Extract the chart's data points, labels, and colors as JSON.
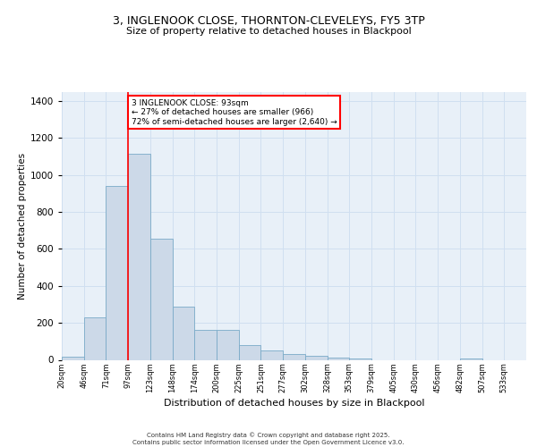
{
  "title1": "3, INGLENOOK CLOSE, THORNTON-CLEVELEYS, FY5 3TP",
  "title2": "Size of property relative to detached houses in Blackpool",
  "xlabel": "Distribution of detached houses by size in Blackpool",
  "ylabel": "Number of detached properties",
  "bar_color": "#ccd9e8",
  "bar_edge_color": "#7aaac8",
  "grid_color": "#d0dff0",
  "background_color": "#e8f0f8",
  "vline_color": "red",
  "vline_bin": 3,
  "annotation_text": "3 INGLENOOK CLOSE: 93sqm\n← 27% of detached houses are smaller (966)\n72% of semi-detached houses are larger (2,640) →",
  "annotation_box_color": "white",
  "annotation_box_edge": "red",
  "footer_text": "Contains HM Land Registry data © Crown copyright and database right 2025.\nContains public sector information licensed under the Open Government Licence v3.0.",
  "bin_labels": [
    "20sqm",
    "46sqm",
    "71sqm",
    "97sqm",
    "123sqm",
    "148sqm",
    "174sqm",
    "200sqm",
    "225sqm",
    "251sqm",
    "277sqm",
    "302sqm",
    "328sqm",
    "353sqm",
    "379sqm",
    "405sqm",
    "430sqm",
    "456sqm",
    "482sqm",
    "507sqm",
    "533sqm"
  ],
  "counts": [
    15,
    230,
    940,
    1115,
    655,
    290,
    160,
    160,
    80,
    50,
    30,
    20,
    12,
    8,
    0,
    0,
    0,
    0,
    8,
    0,
    0
  ],
  "ylim": [
    0,
    1450
  ],
  "yticks": [
    0,
    200,
    400,
    600,
    800,
    1000,
    1200,
    1400
  ]
}
